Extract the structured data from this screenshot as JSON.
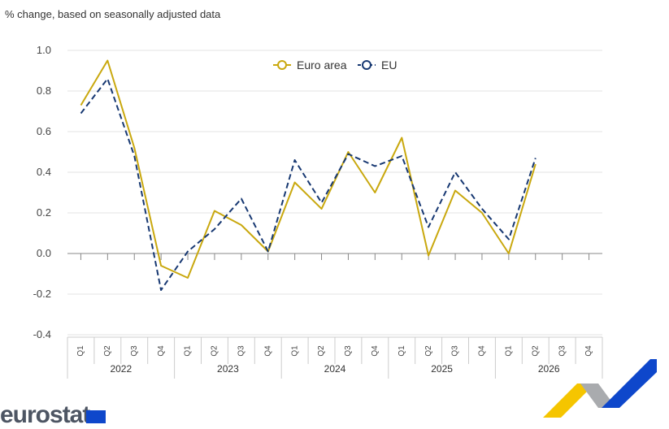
{
  "subtitle": "% change, based on seasonally adjusted data",
  "logo": {
    "text": "eurostat"
  },
  "colors": {
    "euro_area": "#c9a80e",
    "eu": "#173872",
    "grid": "#e3e3e3",
    "axis": "#888888",
    "brand_yellow": "#f5c500",
    "brand_grey": "#a9abae",
    "brand_blue": "#0e47cb"
  },
  "chart_data": {
    "type": "line",
    "ylim": [
      -0.4,
      1.0
    ],
    "yticks": [
      1.0,
      0.8,
      0.6,
      0.4,
      0.2,
      0.0,
      -0.2,
      -0.4
    ],
    "ytick_labels": [
      "1.0",
      "0.8",
      "0.6",
      "0.4",
      "0.2",
      "0.0",
      "-0.2",
      "-0.4"
    ],
    "grid": true,
    "legend_position": "top-center",
    "x": [
      "2022 Q1",
      "2022 Q2",
      "2022 Q3",
      "2022 Q4",
      "2023 Q1",
      "2023 Q2",
      "2023 Q3",
      "2023 Q4",
      "2024 Q1",
      "2024 Q2",
      "2024 Q3",
      "2024 Q4",
      "2025 Q1",
      "2025 Q2",
      "2025 Q3",
      "2025 Q4",
      "2026 Q1",
      "2026 Q2",
      "2026 Q3",
      "2026 Q4"
    ],
    "quarters": [
      "Q1",
      "Q2",
      "Q3",
      "Q4",
      "Q1",
      "Q2",
      "Q3",
      "Q4",
      "Q1",
      "Q2",
      "Q3",
      "Q4",
      "Q1",
      "Q2",
      "Q3",
      "Q4",
      "Q1",
      "Q2",
      "Q3",
      "Q4"
    ],
    "years": [
      "2022",
      "2023",
      "2024",
      "2025",
      "2026"
    ],
    "series": [
      {
        "name": "Euro area",
        "color": "#c9a80e",
        "style": "solid",
        "values": [
          0.73,
          0.95,
          0.52,
          -0.06,
          -0.12,
          0.21,
          0.14,
          0.01,
          0.35,
          0.22,
          0.5,
          0.3,
          0.57,
          -0.01,
          0.31,
          0.2,
          0.0,
          0.44,
          null,
          null
        ]
      },
      {
        "name": "EU",
        "color": "#173872",
        "style": "dashed",
        "values": [
          0.69,
          0.86,
          0.48,
          -0.18,
          0.01,
          0.12,
          0.27,
          0.01,
          0.46,
          0.25,
          0.49,
          0.43,
          0.48,
          0.13,
          0.4,
          0.22,
          0.07,
          0.47,
          null,
          null
        ]
      }
    ]
  }
}
